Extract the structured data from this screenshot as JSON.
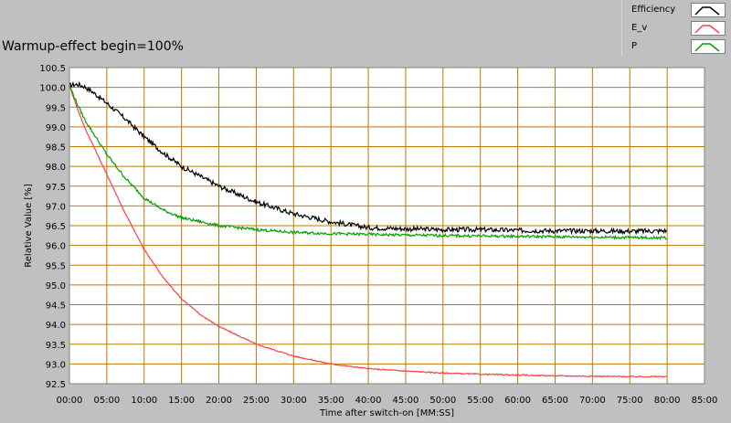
{
  "chart_data": {
    "type": "line",
    "title": "Warmup-effect begin=100%",
    "xlabel": "Time after switch-on [MM:SS]",
    "ylabel": "Relative Value [%]",
    "xlim": [
      0,
      85
    ],
    "ylim": [
      92.5,
      100.5
    ],
    "grid": true,
    "legend_position": "top-right",
    "x_tick_labels": [
      "00:00",
      "05:00",
      "10:00",
      "15:00",
      "20:00",
      "25:00",
      "30:00",
      "35:00",
      "40:00",
      "45:00",
      "50:00",
      "55:00",
      "60:00",
      "65:00",
      "70:00",
      "75:00",
      "80:00",
      "85:00"
    ],
    "y_tick_labels": [
      "100.5",
      "100.0",
      "99.5",
      "99.0",
      "98.5",
      "98.0",
      "97.5",
      "97.0",
      "96.5",
      "96.0",
      "95.5",
      "95.0",
      "94.5",
      "94.0",
      "93.5",
      "93.0",
      "92.5"
    ],
    "x": [
      0,
      1,
      2,
      3,
      5,
      7.5,
      10,
      12.5,
      15,
      17.5,
      20,
      25,
      30,
      35,
      40,
      45,
      50,
      55,
      60,
      65,
      70,
      75,
      80
    ],
    "series": [
      {
        "name": "Efficiency",
        "color": "#000000",
        "values": [
          100.05,
          100.08,
          100.02,
          99.9,
          99.6,
          99.2,
          98.75,
          98.35,
          98.0,
          97.75,
          97.5,
          97.1,
          96.8,
          96.6,
          96.45,
          96.42,
          96.4,
          96.4,
          96.38,
          96.37,
          96.37,
          96.36,
          96.37
        ]
      },
      {
        "name": "E_v",
        "color": "#ff4040",
        "values": [
          100.05,
          99.5,
          99.0,
          98.6,
          97.8,
          96.8,
          95.9,
          95.2,
          94.65,
          94.25,
          93.95,
          93.5,
          93.2,
          93.0,
          92.88,
          92.82,
          92.77,
          92.74,
          92.72,
          92.7,
          92.69,
          92.68,
          92.68
        ]
      },
      {
        "name": "P",
        "color": "#00a000",
        "values": [
          100.05,
          99.6,
          99.2,
          98.9,
          98.3,
          97.7,
          97.2,
          96.9,
          96.7,
          96.6,
          96.5,
          96.4,
          96.33,
          96.3,
          96.28,
          96.26,
          96.25,
          96.24,
          96.23,
          96.22,
          96.21,
          96.2,
          96.19
        ]
      }
    ]
  },
  "colors": {
    "background": "#c0c0c0",
    "plot_area": "#ffffff",
    "grid": "#c07800"
  }
}
